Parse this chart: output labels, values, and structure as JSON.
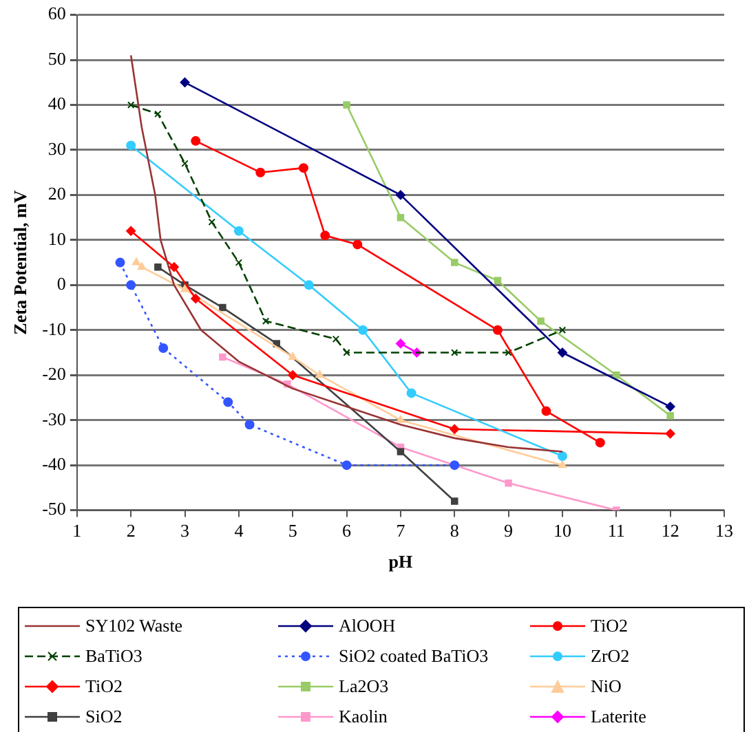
{
  "chart_data": {
    "type": "line",
    "xlabel": "pH",
    "ylabel": "Zeta Potential, mV",
    "xlim": [
      1,
      13
    ],
    "xticks": [
      1,
      2,
      3,
      4,
      5,
      6,
      7,
      8,
      9,
      10,
      11,
      12,
      13
    ],
    "ylim": [
      -50,
      60
    ],
    "yticks": [
      -50,
      -40,
      -30,
      -20,
      -10,
      0,
      10,
      20,
      30,
      40,
      50,
      60
    ],
    "grid": "y",
    "legend": "bottom",
    "series": [
      {
        "name": "SY102 Waste",
        "color": "#993333",
        "marker": "none",
        "line_style": "solid",
        "x": [
          2,
          2.2,
          2.45,
          2.55,
          2.8,
          3.3,
          4,
          5,
          6,
          7,
          8,
          9,
          10
        ],
        "values": [
          51,
          35,
          20,
          10,
          0,
          -10,
          -17,
          -23,
          -27,
          -31,
          -34,
          -36,
          -37
        ]
      },
      {
        "name": "AlOOH",
        "color": "#000080",
        "marker": "diamond",
        "line_style": "solid",
        "x": [
          3,
          7,
          10,
          12
        ],
        "values": [
          45,
          20,
          -15,
          -27
        ]
      },
      {
        "name": "TiO2",
        "color": "#ff0000",
        "marker": "circle",
        "line_style": "solid",
        "x": [
          3.2,
          4.4,
          5.2,
          5.6,
          6.2,
          8.8,
          9.7,
          10.7
        ],
        "values": [
          32,
          25,
          26,
          11,
          9,
          -10,
          -28,
          -35
        ]
      },
      {
        "name": "BaTiO3",
        "color": "#004000",
        "marker": "cross",
        "line_style": "dashed",
        "x": [
          2,
          2.5,
          3,
          3.5,
          4,
          4.5,
          5.8,
          6,
          8,
          9,
          10
        ],
        "values": [
          40,
          38,
          27,
          14,
          5,
          -8,
          -12,
          -15,
          -15,
          -15,
          -10
        ]
      },
      {
        "name": "SiO2 coated BaTiO3",
        "color": "#3355ff",
        "marker": "circle",
        "line_style": "dotted",
        "x": [
          1.8,
          2,
          2.6,
          3.8,
          4.2,
          6,
          8
        ],
        "values": [
          5,
          0,
          -14,
          -26,
          -31,
          -40,
          -40
        ]
      },
      {
        "name": "ZrO2",
        "color": "#33ccff",
        "marker": "circle",
        "line_style": "solid",
        "x": [
          2,
          4,
          5.3,
          6.3,
          7.2,
          10
        ],
        "values": [
          31,
          12,
          0,
          -10,
          -24,
          -38
        ]
      },
      {
        "name": "TiO2",
        "color": "#ff0000",
        "marker": "diamond",
        "line_style": "solid",
        "x": [
          2,
          2.8,
          3.2,
          5,
          8,
          12
        ],
        "values": [
          12,
          4,
          -3,
          -20,
          -32,
          -33
        ]
      },
      {
        "name": "La2O3",
        "color": "#99cc66",
        "marker": "square",
        "line_style": "solid",
        "x": [
          6,
          7,
          8,
          8.8,
          9.6,
          11,
          12
        ],
        "values": [
          40,
          15,
          5,
          1,
          -8,
          -20,
          -29
        ]
      },
      {
        "name": "NiO",
        "color": "#ffcc99",
        "marker": "triangle",
        "line_style": "solid",
        "x": [
          2.1,
          2.2,
          3,
          5,
          5.5,
          7,
          10
        ],
        "values": [
          5,
          4,
          -1,
          -16,
          -20,
          -30,
          -40
        ]
      },
      {
        "name": "SiO2",
        "color": "#404040",
        "marker": "square",
        "line_style": "solid",
        "x": [
          2.5,
          3,
          3.7,
          4.7,
          7,
          8
        ],
        "values": [
          4,
          0,
          -5,
          -13,
          -37,
          -48
        ]
      },
      {
        "name": "Kaolin",
        "color": "#ff99cc",
        "marker": "square",
        "line_style": "solid",
        "x": [
          3.7,
          4.9,
          7,
          9,
          11
        ],
        "values": [
          -16,
          -22,
          -36,
          -44,
          -50
        ]
      },
      {
        "name": "Laterite",
        "color": "#ff00ff",
        "marker": "diamond",
        "line_style": "solid",
        "x": [
          7,
          7.3
        ],
        "values": [
          -13,
          -15
        ]
      }
    ]
  }
}
